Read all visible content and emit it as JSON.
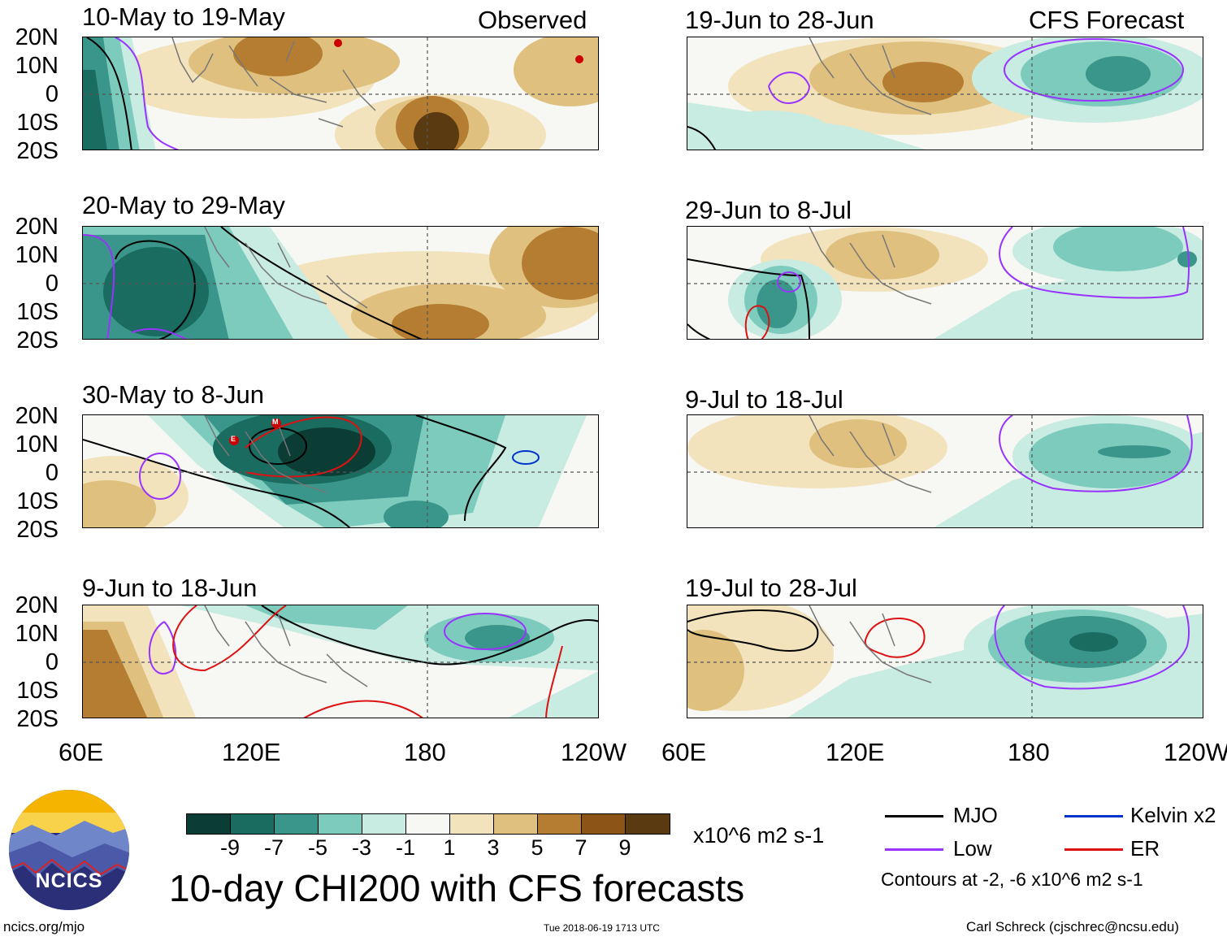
{
  "observed_label": "Observed",
  "forecast_label": "CFS Forecast",
  "panels": [
    {
      "title": "10-May to 19-May"
    },
    {
      "title": "20-May to 29-May"
    },
    {
      "title": "30-May to 8-Jun"
    },
    {
      "title": "9-Jun to 18-Jun"
    },
    {
      "title": "19-Jun to 28-Jun"
    },
    {
      "title": "29-Jun to 8-Jul"
    },
    {
      "title": "9-Jul to 18-Jul"
    },
    {
      "title": "19-Jul to 28-Jul"
    }
  ],
  "lat_labels": [
    "20N",
    "10N",
    "0",
    "10S",
    "20S"
  ],
  "lon_labels": [
    "60E",
    "120E",
    "180",
    "120W"
  ],
  "colorbar": {
    "ticks": [
      "-9",
      "-7",
      "-5",
      "-3",
      "-1",
      "1",
      "3",
      "5",
      "7",
      "9"
    ],
    "colors": [
      "#0c3d35",
      "#1a6b60",
      "#3a968a",
      "#7ccbbd",
      "#c8ebe2",
      "#f7f7f4",
      "#f2e3bc",
      "#dfc07f",
      "#b57d31",
      "#8c5417",
      "#5a3a10"
    ],
    "units": "x10^6 m2 s-1"
  },
  "title": "10-day CHI200 with CFS forecasts",
  "legend": {
    "items": [
      {
        "label": "MJO",
        "color": "#000000"
      },
      {
        "label": "Kelvin x2",
        "color": "#0033cc"
      },
      {
        "label": "Low",
        "color": "#9933ff"
      },
      {
        "label": "ER",
        "color": "#dd1111"
      }
    ],
    "note": "Contours at -2, -6 x10^6 m2 s-1"
  },
  "logo_text": "NCICS",
  "url": "ncics.org/mjo",
  "timestamp": "Tue 2018-06-19 1713 UTC",
  "author": "Carl Schreck (cjschrec@ncsu.edu)",
  "storm_markers": [
    "M",
    "E"
  ]
}
